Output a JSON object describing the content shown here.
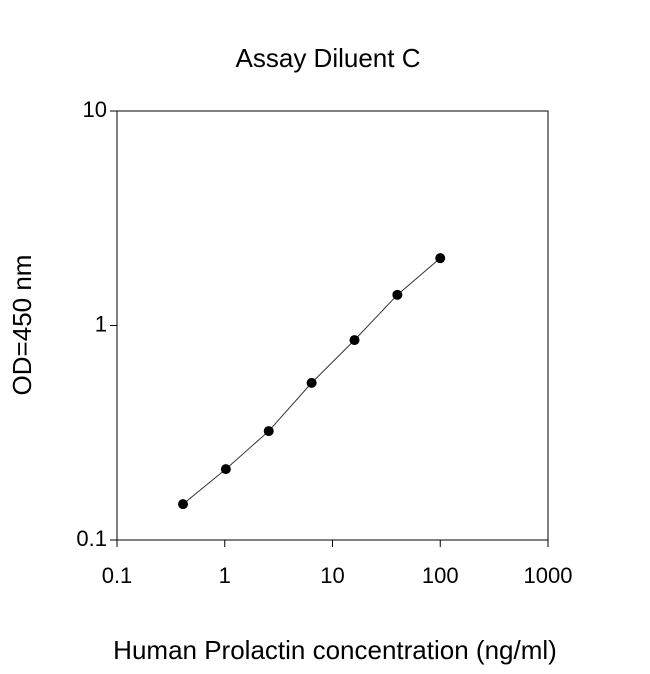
{
  "chart_data": {
    "type": "scatter",
    "title": "Assay Diluent C",
    "x_label": "Human Prolactin concentration (ng/ml)",
    "y_label": "OD=450 nm",
    "x": [
      0.41,
      1.024,
      2.56,
      6.4,
      16,
      40,
      100
    ],
    "values": [
      0.147,
      0.214,
      0.322,
      0.54,
      0.855,
      1.39,
      2.06
    ],
    "color": "#000000",
    "line": true,
    "xlog": true,
    "ylog": true,
    "xlim": [
      0.1,
      1000
    ],
    "ylim": [
      0.1,
      10
    ],
    "xticks": [
      0.1,
      1,
      10,
      100,
      1000
    ],
    "yticks": [
      0.1,
      1,
      10
    ]
  }
}
